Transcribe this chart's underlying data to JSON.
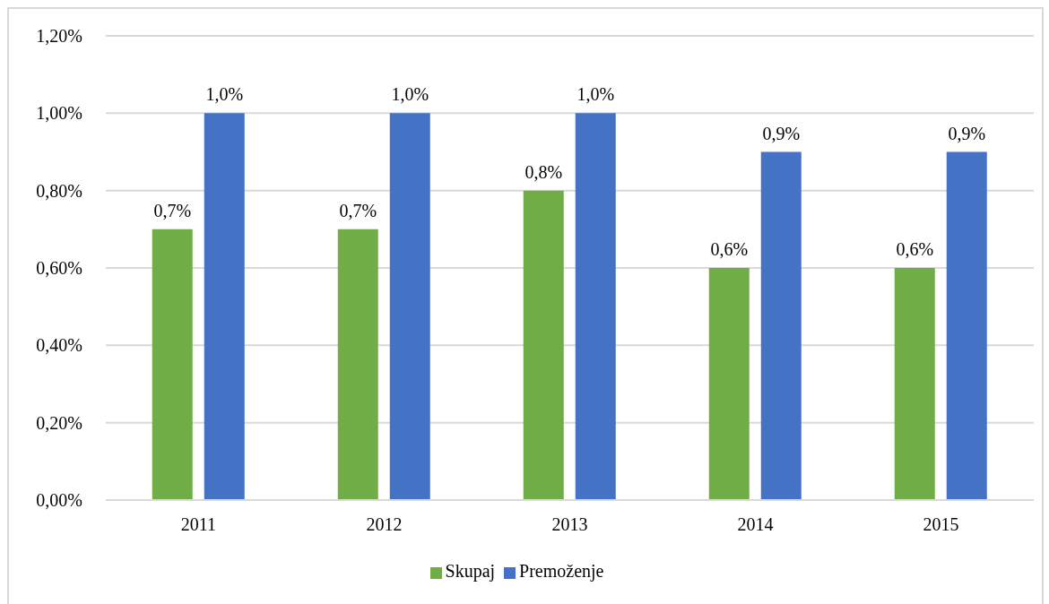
{
  "chart_data": {
    "type": "bar",
    "categories": [
      "2011",
      "2012",
      "2013",
      "2014",
      "2015"
    ],
    "series": [
      {
        "name": "Skupaj",
        "color": "#70ad47",
        "values": [
          0.7,
          0.7,
          0.8,
          0.6,
          0.6
        ],
        "value_labels": [
          "0,7%",
          "0,7%",
          "0,8%",
          "0,6%",
          "0,6%"
        ]
      },
      {
        "name": "Premoženje",
        "color": "#4472c4",
        "values": [
          1.0,
          1.0,
          1.0,
          0.9,
          0.9
        ],
        "value_labels": [
          "1,0%",
          "1,0%",
          "1,0%",
          "0,9%",
          "0,9%"
        ]
      }
    ],
    "ylim": [
      0,
      1.2
    ],
    "yticks": [
      {
        "value": 0,
        "label": "0,00%"
      },
      {
        "value": 0.2,
        "label": "0,20%"
      },
      {
        "value": 0.4,
        "label": "0,40%"
      },
      {
        "value": 0.6,
        "label": "0,60%"
      },
      {
        "value": 0.8,
        "label": "0,80%"
      },
      {
        "value": 1.0,
        "label": "1,00%"
      },
      {
        "value": 1.2,
        "label": "1,20%"
      }
    ],
    "grid": "y",
    "legend": "bottom"
  }
}
